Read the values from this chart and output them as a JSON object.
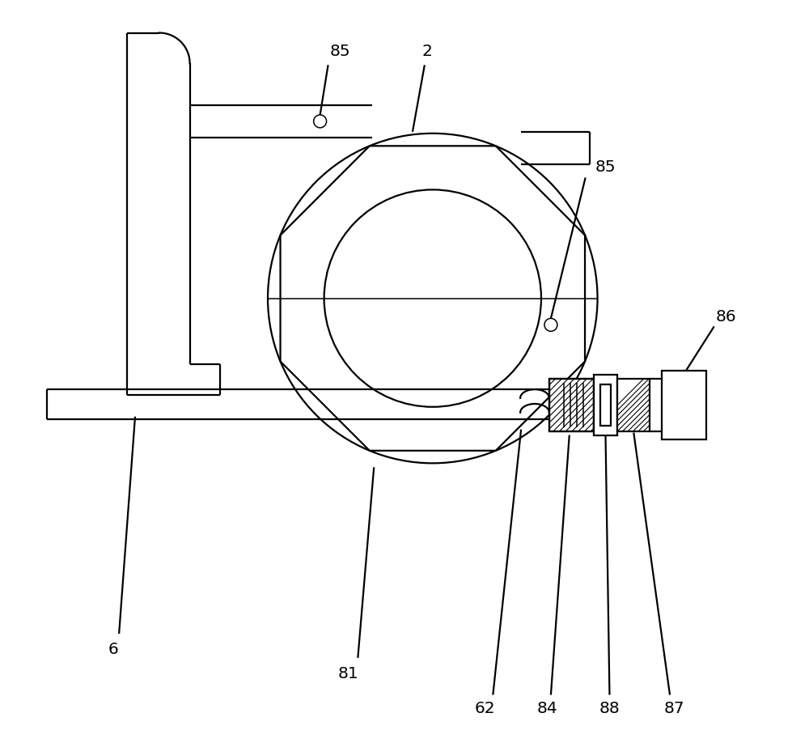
{
  "bg_color": "#ffffff",
  "line_color": "#000000",
  "lw": 1.6,
  "lw_thin": 1.1,
  "fig_width": 10.0,
  "fig_height": 9.23
}
